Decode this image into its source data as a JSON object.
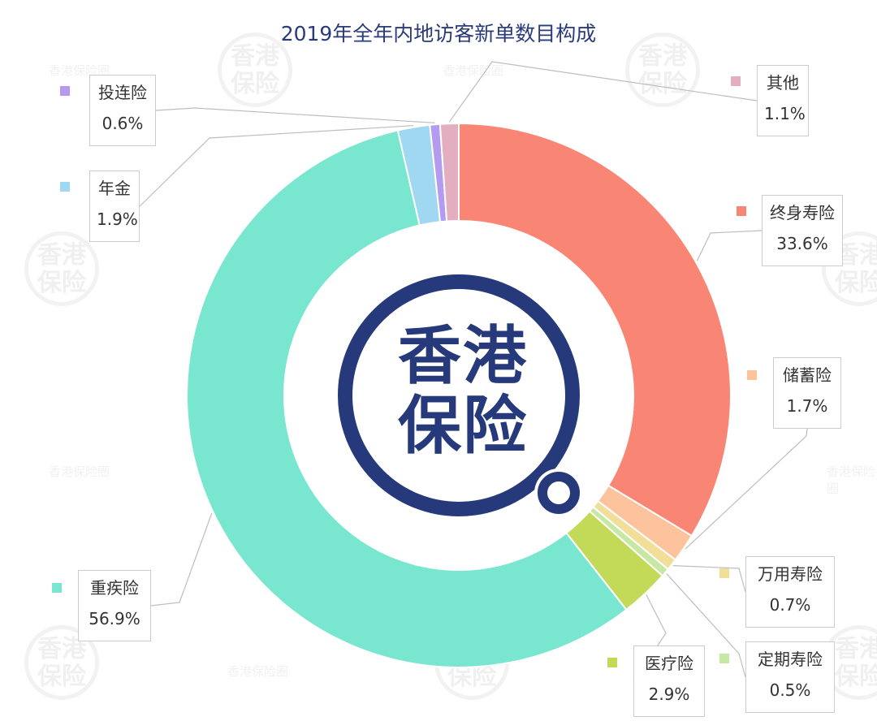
{
  "chart_data": {
    "type": "pie",
    "title": "2019年全年内地访客新单数目构成",
    "slices": [
      {
        "name": "终身寿险",
        "value": 33.6,
        "label": "33.6%",
        "color": "#f98674"
      },
      {
        "name": "储蓄险",
        "value": 1.7,
        "label": "1.7%",
        "color": "#fcc39c"
      },
      {
        "name": "万用寿险",
        "value": 0.7,
        "label": "0.7%",
        "color": "#f1de98"
      },
      {
        "name": "定期寿险",
        "value": 0.5,
        "label": "0.5%",
        "color": "#c5e8a4"
      },
      {
        "name": "医疗险",
        "value": 2.9,
        "label": "2.9%",
        "color": "#c2da58"
      },
      {
        "name": "重疾险",
        "value": 56.9,
        "label": "56.9%",
        "color": "#79e6cf"
      },
      {
        "name": "年金",
        "value": 1.9,
        "label": "1.9%",
        "color": "#9fd8f0"
      },
      {
        "name": "投连险",
        "value": 0.6,
        "label": "0.6%",
        "color": "#b39cf0"
      },
      {
        "name": "其他",
        "value": 1.1,
        "label": "1.1%",
        "color": "#e3aebf"
      }
    ],
    "legend": "callout-labels"
  },
  "logo": {
    "text_line1": "香港",
    "text_line2": "保险",
    "color": "#26397a"
  },
  "watermark": {
    "text": "香港保险圈",
    "badge_line1": "香港",
    "badge_line2": "保险"
  }
}
